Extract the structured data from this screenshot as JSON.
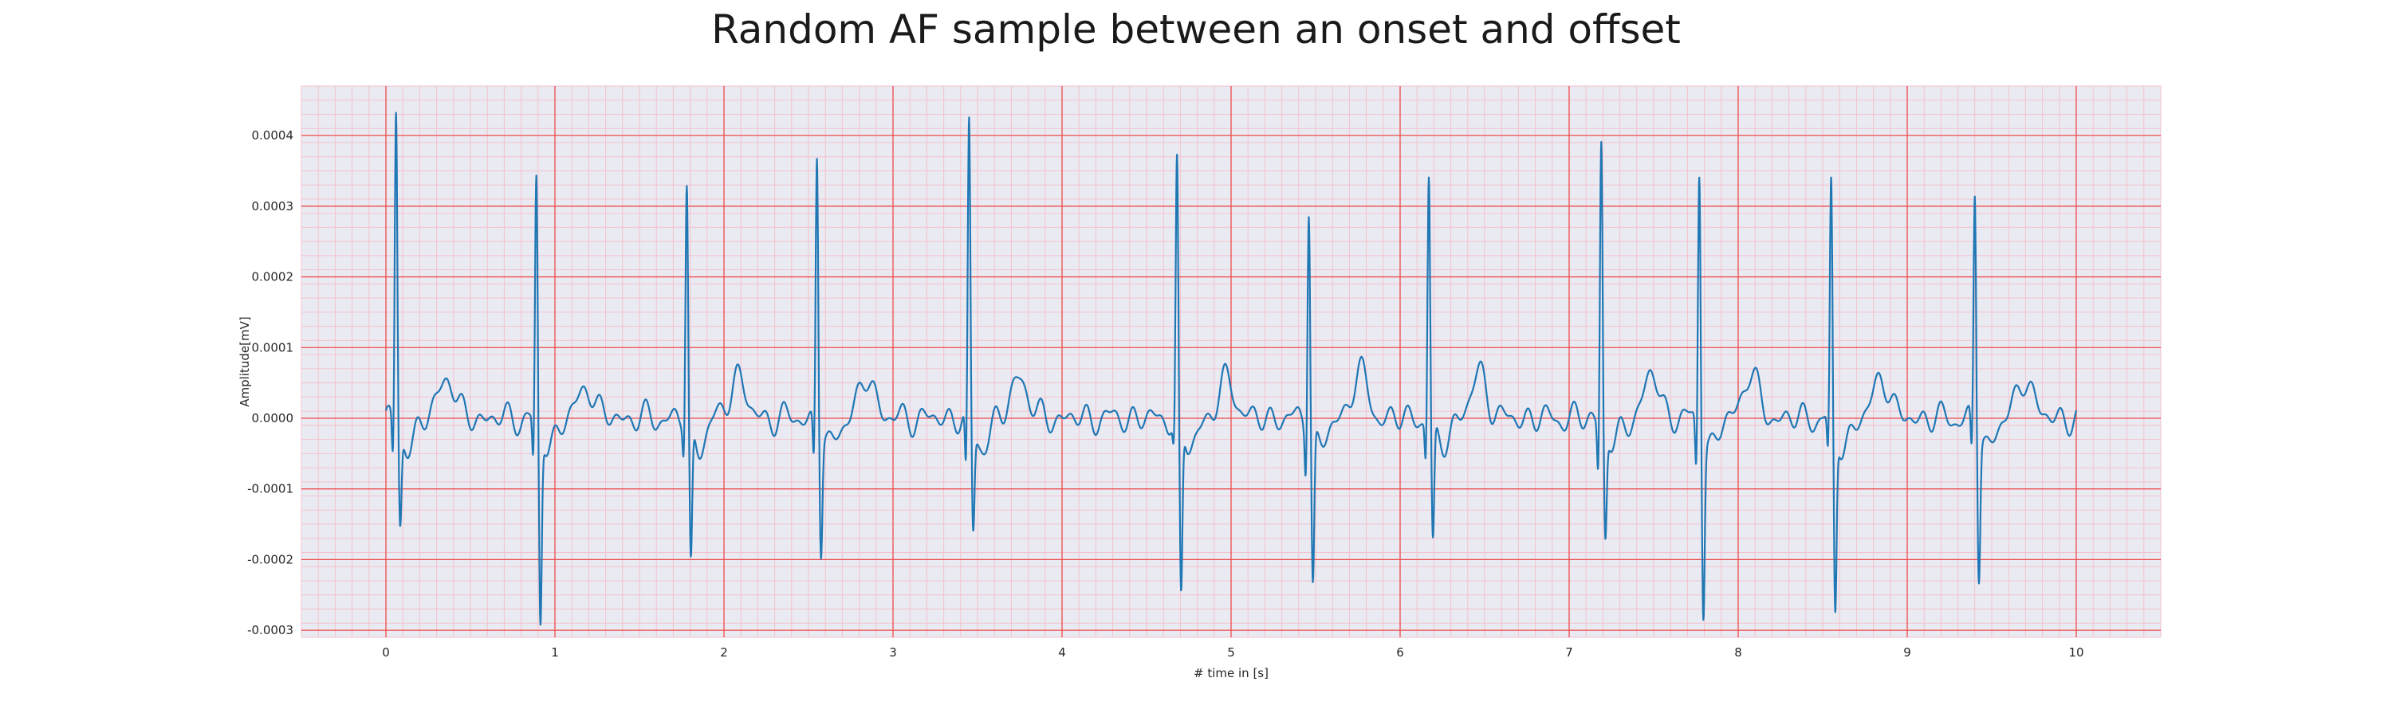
{
  "chart_data": {
    "type": "line",
    "title": "Random AF sample between an onset and offset",
    "xlabel": "# time in [s]",
    "ylabel": "Amplitude[mV]",
    "xlim": [
      -0.5,
      10.5
    ],
    "ylim": [
      -0.00031,
      0.00047
    ],
    "xticks": [
      0,
      1,
      2,
      3,
      4,
      5,
      6,
      7,
      8,
      9,
      10
    ],
    "yticks": [
      -0.0003,
      -0.0002,
      -0.0001,
      0.0,
      0.0001,
      0.0002,
      0.0003,
      0.0004
    ],
    "ytick_labels": [
      "-0.0003",
      "-0.0002",
      "-0.0001",
      "0.0000",
      "0.0001",
      "0.0002",
      "0.0003",
      "0.0004"
    ],
    "grid": true,
    "series": [
      {
        "color": "#1f77b4",
        "beats": [
          {
            "t": 0.06,
            "r": 0.00044,
            "q": -7e-05,
            "s": -0.000135
          },
          {
            "t": 0.89,
            "r": 0.000345,
            "q": -7e-05,
            "s": -0.000275
          },
          {
            "t": 1.78,
            "r": 0.00034,
            "q": -5e-05,
            "s": -0.000195
          },
          {
            "t": 2.55,
            "r": 0.000385,
            "q": -7e-05,
            "s": -0.000165
          },
          {
            "t": 3.45,
            "r": 0.00042,
            "q": -9e-05,
            "s": -0.000145
          },
          {
            "t": 4.68,
            "r": 0.000365,
            "q": -4e-05,
            "s": -0.000245
          },
          {
            "t": 5.46,
            "r": 0.00032,
            "q": -7e-05,
            "s": -0.000215
          },
          {
            "t": 6.17,
            "r": 0.000355,
            "q": -6e-05,
            "s": -0.000165
          },
          {
            "t": 7.19,
            "r": 0.000405,
            "q": -8e-05,
            "s": -0.00015
          },
          {
            "t": 7.77,
            "r": 0.000365,
            "q": -8e-05,
            "s": -0.000245
          },
          {
            "t": 8.55,
            "r": 0.000335,
            "q": -6e-05,
            "s": -0.00026
          },
          {
            "t": 9.4,
            "r": 0.00033,
            "q": -6e-05,
            "s": -0.0002
          }
        ],
        "t_wave_amplitude": 5.5e-05,
        "t_end": 10.0
      }
    ]
  }
}
